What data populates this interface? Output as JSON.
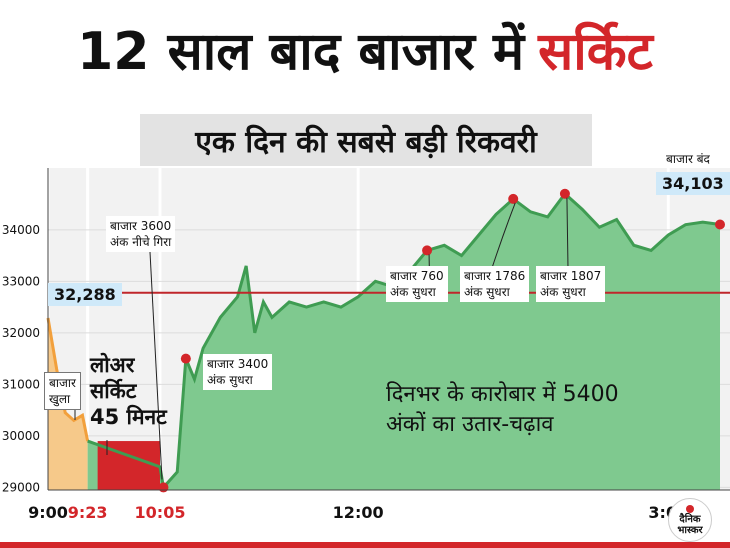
{
  "headline": {
    "main": "12 साल बाद बाजार में",
    "accent": "सर्किट"
  },
  "colors": {
    "accent": "#d3262a",
    "fill": "#7fc98f",
    "line": "#3f9c52",
    "morning": "#f6c98a",
    "ref_line": "#c0262b"
  },
  "chart_data": {
    "type": "area",
    "title": "एक दिन की सबसे बड़ी रिकवरी",
    "x_ticks": [
      "9:00",
      "9:23",
      "10:05",
      "12:00",
      "3:00"
    ],
    "x_tick_colors": [
      "#111111",
      "#d3262a",
      "#d3262a",
      "#111111",
      "#111111"
    ],
    "y_ticks": [
      29000,
      30000,
      31000,
      32000,
      33000,
      34000
    ],
    "ylim": [
      28950,
      35200
    ],
    "reference_line": 32778,
    "series": [
      {
        "points": [
          [
            "9:00",
            32288
          ],
          [
            "9:05",
            31300
          ],
          [
            "9:10",
            30450
          ],
          [
            "9:15",
            30300
          ],
          [
            "9:20",
            30400
          ],
          [
            "9:23",
            29900
          ],
          [
            "10:05",
            29400
          ],
          [
            "10:07",
            29000
          ],
          [
            "10:15",
            29300
          ],
          [
            "10:20",
            31500
          ],
          [
            "10:25",
            31100
          ],
          [
            "10:30",
            31700
          ],
          [
            "10:40",
            32300
          ],
          [
            "10:50",
            32700
          ],
          [
            "10:55",
            33300
          ],
          [
            "11:00",
            32000
          ],
          [
            "11:05",
            32600
          ],
          [
            "11:10",
            32300
          ],
          [
            "11:20",
            32600
          ],
          [
            "11:30",
            32500
          ],
          [
            "11:40",
            32600
          ],
          [
            "11:50",
            32500
          ],
          [
            "12:00",
            32700
          ],
          [
            "12:10",
            33000
          ],
          [
            "12:20",
            32900
          ],
          [
            "12:30",
            33200
          ],
          [
            "12:40",
            33600
          ],
          [
            "12:50",
            33700
          ],
          [
            "13:00",
            33500
          ],
          [
            "13:10",
            33900
          ],
          [
            "13:20",
            34300
          ],
          [
            "13:30",
            34600
          ],
          [
            "13:40",
            34350
          ],
          [
            "13:50",
            34250
          ],
          [
            "14:00",
            34700
          ],
          [
            "14:10",
            34400
          ],
          [
            "14:20",
            34050
          ],
          [
            "14:30",
            34200
          ],
          [
            "14:40",
            33700
          ],
          [
            "14:50",
            33600
          ],
          [
            "15:00",
            33900
          ],
          [
            "15:10",
            34100
          ],
          [
            "15:20",
            34150
          ],
          [
            "15:30",
            34103
          ]
        ]
      }
    ],
    "annotations": [
      {
        "text_lines": [
          "बाजार",
          "खुला"
        ]
      },
      {
        "text_lines": [
          "बाजार 3600",
          "अंक नीचे गिरा"
        ]
      },
      {
        "text_lines": [
          "बाजार 3400",
          "अंक सुधरा"
        ]
      },
      {
        "text_lines": [
          "बाजार 760",
          "अंक सुधरा"
        ]
      },
      {
        "text_lines": [
          "बाजार 1786",
          "अंक सुधरा"
        ]
      },
      {
        "text_lines": [
          "बाजार 1807",
          "अंक सुधरा"
        ]
      },
      {
        "text_lines": [
          "बाजार बंद"
        ]
      }
    ],
    "callouts": [
      "32,288",
      "34,103"
    ],
    "lower_circuit": {
      "lines": [
        "लोअर",
        "सर्किट",
        "45 मिनट"
      ]
    },
    "note_lines": [
      "दिनभर के कारोबार में 5400",
      "अंकों का उतार-चढ़ाव"
    ]
  },
  "logo": {
    "lines": [
      "दैनिक",
      "भास्कर"
    ]
  }
}
